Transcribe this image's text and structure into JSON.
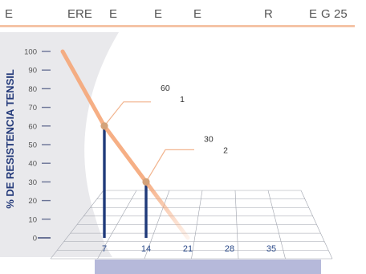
{
  "header": {
    "letters": [
      "E",
      "ERE",
      "E",
      "E",
      "E",
      "R",
      "E",
      "G",
      "25"
    ]
  },
  "colors": {
    "accent_line": "#f5a678",
    "bar": "#1f3a7a",
    "point": "#d4a27a",
    "floor_bar": "#b6b9da",
    "backdrop": "#e9e9ec",
    "y_label": "#243a7a",
    "x_tick": "#2b4a8a"
  },
  "chart_data": {
    "type": "line",
    "ylabel": "% DE RESISTENCIA TENSIL",
    "xlabel": "",
    "ylim": [
      0,
      100
    ],
    "y_ticks": [
      "0",
      "10",
      "20",
      "30",
      "40",
      "50",
      "60",
      "70",
      "80",
      "90",
      "100"
    ],
    "x_ticks": [
      "7",
      "14",
      "21",
      "28",
      "35"
    ],
    "grid": true,
    "series": [
      {
        "x": [
          0,
          7,
          14,
          21
        ],
        "y": [
          100,
          60,
          30,
          0
        ]
      }
    ],
    "annotations": [
      {
        "x": 7,
        "y": 60,
        "value": "60",
        "label": "1"
      },
      {
        "x": 14,
        "y": 30,
        "value": "30",
        "label": "2"
      }
    ]
  }
}
